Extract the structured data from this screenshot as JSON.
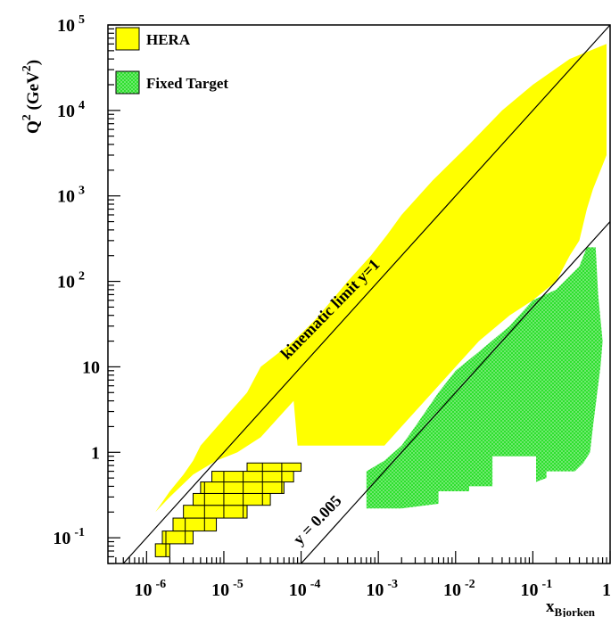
{
  "chart_data": {
    "type": "area",
    "xlabel": "x",
    "xlabel_sub": "Bjorken",
    "ylabel": "Q",
    "ylabel_sup": "2",
    "ylabel_unit_open": " (GeV",
    "ylabel_unit_sup": "2",
    "ylabel_unit_close": ")",
    "x_scale": "log",
    "y_scale": "log",
    "xlim": [
      3.16e-07,
      1
    ],
    "ylim": [
      0.05,
      100000
    ],
    "grid": false,
    "legend_position": "top-left",
    "x_ticks": [
      {
        "value": 1e-06,
        "base": "10",
        "exp": "-6"
      },
      {
        "value": 1e-05,
        "base": "10",
        "exp": "-5"
      },
      {
        "value": 0.0001,
        "base": "10",
        "exp": "-4"
      },
      {
        "value": 0.001,
        "base": "10",
        "exp": "-3"
      },
      {
        "value": 0.01,
        "base": "10",
        "exp": "-2"
      },
      {
        "value": 0.1,
        "base": "10",
        "exp": "-1"
      },
      {
        "value": 1,
        "base": "1",
        "exp": ""
      }
    ],
    "y_ticks": [
      {
        "value": 0.1,
        "base": "10",
        "exp": "-1"
      },
      {
        "value": 1,
        "base": "1",
        "exp": ""
      },
      {
        "value": 10,
        "base": "10",
        "exp": ""
      },
      {
        "value": 100,
        "base": "10",
        "exp": "2"
      },
      {
        "value": 1000,
        "base": "10",
        "exp": "3"
      },
      {
        "value": 10000,
        "base": "10",
        "exp": "4"
      },
      {
        "value": 100000,
        "base": "10",
        "exp": "5"
      }
    ],
    "legend": [
      {
        "label": "HERA",
        "color": "#ffff00",
        "pattern": "solid"
      },
      {
        "label": "Fixed Target",
        "color": "#22dd22",
        "pattern": "hatched"
      }
    ],
    "lines": [
      {
        "label": "kinematic limit  y=1",
        "y_value": 1
      },
      {
        "label": "y = 0.005",
        "y_value": 0.005
      }
    ],
    "sqrt_s_squared": 100000,
    "series": [
      {
        "name": "HERA",
        "color": "#ffff00",
        "polygon": [
          [
            1.3e-06,
            0.2
          ],
          [
            2e-06,
            0.35
          ],
          [
            3e-06,
            0.55
          ],
          [
            4e-06,
            0.8
          ],
          [
            5e-06,
            1.2
          ],
          [
            2e-05,
            5
          ],
          [
            3e-05,
            10
          ],
          [
            8e-05,
            20
          ],
          [
            0.00015,
            35
          ],
          [
            0.00025,
            60
          ],
          [
            0.0004,
            100
          ],
          [
            0.0008,
            200
          ],
          [
            0.0013,
            350
          ],
          [
            0.002,
            600
          ],
          [
            0.005,
            1500
          ],
          [
            0.015,
            4000
          ],
          [
            0.04,
            10000
          ],
          [
            0.1,
            20000
          ],
          [
            0.3,
            40000
          ],
          [
            0.9,
            60000
          ],
          [
            0.9,
            3000
          ],
          [
            0.6,
            1200
          ],
          [
            0.5,
            700
          ],
          [
            0.4,
            300
          ],
          [
            0.3,
            200
          ],
          [
            0.2,
            100
          ],
          [
            0.1,
            60
          ],
          [
            0.05,
            40
          ],
          [
            0.02,
            20
          ],
          [
            0.01,
            10
          ],
          [
            0.005,
            5
          ],
          [
            0.002,
            2
          ],
          [
            0.0012,
            1.2
          ],
          [
            0.0001,
            1.2
          ],
          [
            9e-05,
            1.2
          ],
          [
            8e-05,
            4
          ],
          [
            5e-05,
            2.5
          ],
          [
            3e-05,
            1.5
          ],
          [
            1.5e-05,
            1
          ],
          [
            8e-06,
            0.8
          ],
          [
            4e-06,
            0.55
          ],
          [
            2e-06,
            0.3
          ],
          [
            1.3e-06,
            0.2
          ]
        ]
      },
      {
        "name": "Fixed Target",
        "color": "#22dd22",
        "polygon": [
          [
            0.0007,
            0.22
          ],
          [
            0.0007,
            0.6
          ],
          [
            0.0012,
            0.8
          ],
          [
            0.002,
            1.2
          ],
          [
            0.003,
            2
          ],
          [
            0.006,
            5
          ],
          [
            0.01,
            9
          ],
          [
            0.02,
            15
          ],
          [
            0.05,
            30
          ],
          [
            0.1,
            60
          ],
          [
            0.2,
            80
          ],
          [
            0.4,
            150
          ],
          [
            0.5,
            250
          ],
          [
            0.65,
            250
          ],
          [
            0.7,
            70
          ],
          [
            0.8,
            20
          ],
          [
            0.75,
            10
          ],
          [
            0.6,
            2
          ],
          [
            0.55,
            1
          ],
          [
            0.45,
            0.75
          ],
          [
            0.35,
            0.6
          ],
          [
            0.15,
            0.6
          ],
          [
            0.15,
            0.5
          ],
          [
            0.11,
            0.45
          ],
          [
            0.11,
            0.9
          ],
          [
            0.03,
            0.9
          ],
          [
            0.03,
            0.4
          ],
          [
            0.015,
            0.4
          ],
          [
            0.015,
            0.35
          ],
          [
            0.006,
            0.35
          ],
          [
            0.006,
            0.25
          ],
          [
            0.002,
            0.22
          ],
          [
            0.0007,
            0.22
          ]
        ]
      },
      {
        "name": "HERA low-Q2 bins",
        "color": "#ffff00",
        "grid_rows": [
          {
            "y0": 0.06,
            "y1": 0.085,
            "x0": 1.3e-06,
            "x1": 2e-06
          },
          {
            "y0": 0.085,
            "y1": 0.12,
            "x0": 1.6e-06,
            "x1": 4e-06
          },
          {
            "y0": 0.12,
            "y1": 0.17,
            "x0": 2.2e-06,
            "x1": 8e-06
          },
          {
            "y0": 0.17,
            "y1": 0.24,
            "x0": 3e-06,
            "x1": 2e-05
          },
          {
            "y0": 0.24,
            "y1": 0.33,
            "x0": 4e-06,
            "x1": 4e-05
          },
          {
            "y0": 0.33,
            "y1": 0.45,
            "x0": 5e-06,
            "x1": 6e-05
          },
          {
            "y0": 0.45,
            "y1": 0.6,
            "x0": 7e-06,
            "x1": 8e-05
          },
          {
            "y0": 0.6,
            "y1": 0.75,
            "x0": 2e-05,
            "x1": 0.0001
          }
        ]
      }
    ]
  }
}
